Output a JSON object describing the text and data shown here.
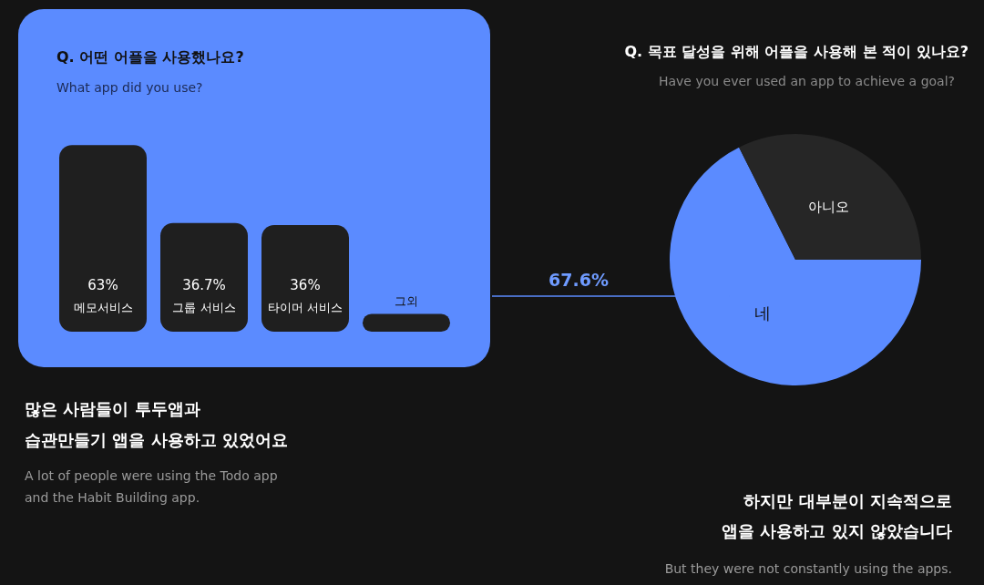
{
  "chart_data": [
    {
      "type": "bar",
      "title": "Q. 어떤 어플을 사용했나요?",
      "subtitle": "What app did you use?",
      "categories": [
        "메모서비스",
        "그룹 서비스",
        "타이머 서비스",
        "그외"
      ],
      "values": [
        63,
        36.7,
        36,
        6
      ],
      "color": "#1f1f1f",
      "value_labels": [
        "63%",
        "36.7%",
        "36%",
        null
      ],
      "annotations": [
        "많은 사람들이 투두앱과",
        "습관만들기 앱을 사용하고 있었어요",
        "A lot of people were using the Todo app",
        "and the Habit Building app."
      ]
    },
    {
      "type": "pie",
      "title": "Q. 목표 달성을 위해 어플을 사용해 본 적이 있나요?",
      "subtitle": "Have you ever used an app to achieve a goal?",
      "categories": [
        "네",
        "아니오"
      ],
      "values": [
        67.6,
        32.4
      ],
      "colors": [
        "#5b8bff",
        "#262626"
      ],
      "value_labels": [
        "67.6%",
        null
      ],
      "annotations": [
        "하지만 대부분이 지속적으로",
        "앱을 사용하고 있지 않았습니다",
        "But  they were not constantly using the apps."
      ]
    }
  ]
}
